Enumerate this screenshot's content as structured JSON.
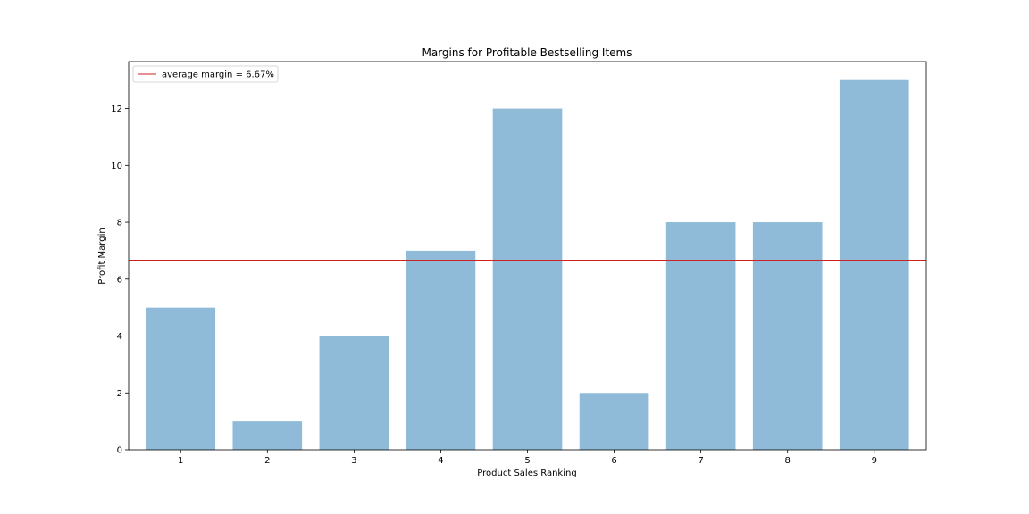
{
  "chart_data": {
    "type": "bar",
    "title": "Margins for Profitable Bestselling Items",
    "xlabel": "Product Sales Ranking",
    "ylabel": "Profit Margin",
    "categories": [
      "1",
      "2",
      "3",
      "4",
      "5",
      "6",
      "7",
      "8",
      "9"
    ],
    "values": [
      5,
      1,
      4,
      7,
      12,
      2,
      8,
      8,
      13
    ],
    "ylim": [
      0,
      13.65
    ],
    "yticks": [
      0,
      2,
      4,
      6,
      8,
      10,
      12
    ],
    "grid": false,
    "bar_color": "#8fbad8",
    "reference_line": {
      "value": 6.67,
      "label": "average margin = 6.67%",
      "color": "#cc2222"
    },
    "legend_position": "top-left"
  }
}
